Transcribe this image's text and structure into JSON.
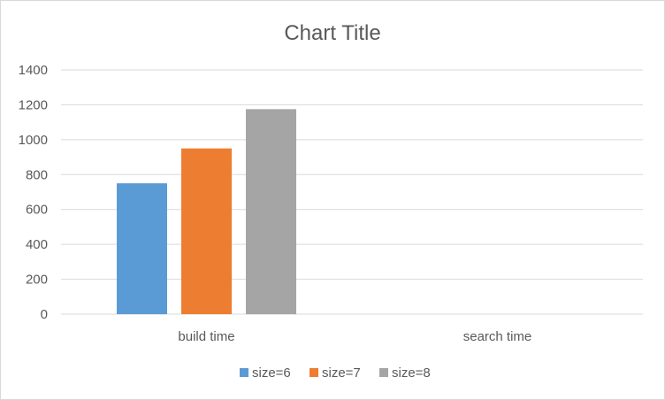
{
  "chart_data": {
    "type": "bar",
    "title": "Chart Title",
    "categories": [
      "build time",
      "search time"
    ],
    "series": [
      {
        "name": "size=6",
        "values": [
          750,
          0
        ],
        "color": "#5b9bd5"
      },
      {
        "name": "size=7",
        "values": [
          950,
          0
        ],
        "color": "#ed7d31"
      },
      {
        "name": "size=8",
        "values": [
          1175,
          0
        ],
        "color": "#a5a5a5"
      }
    ],
    "ylim": [
      0,
      1400
    ],
    "yticks": [
      0,
      200,
      400,
      600,
      800,
      1000,
      1200,
      1400
    ],
    "grid": true,
    "legend": "bottom"
  }
}
